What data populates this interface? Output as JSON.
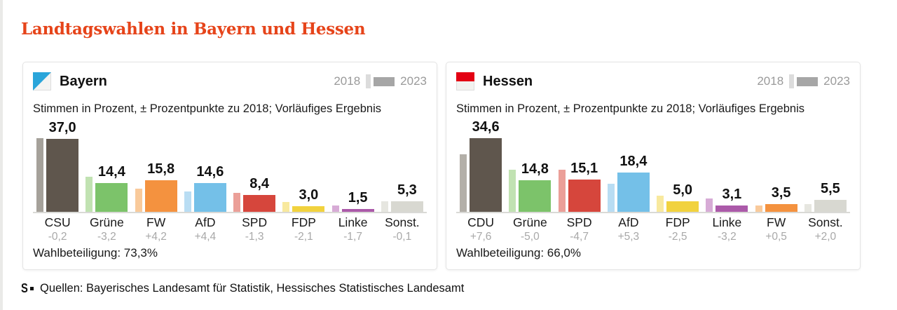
{
  "page": {
    "title": "Landtagswahlen in Bayern und Hessen",
    "accent_color": "#e6441a",
    "footer": {
      "logo_text": "S",
      "source_text": "Quellen: Bayerisches Landesamt für Statistik, Hessisches Statistisches Landesamt"
    }
  },
  "chart_data": [
    {
      "type": "bar",
      "title": "Bayern",
      "flag_icon": "bayern-flag",
      "flag_colors": [
        "#2aa5da",
        "#f4f4f2"
      ],
      "subtitle": "Stimmen in Prozent, ± Prozentpunkte zu 2018; Vorläufiges Ergebnis",
      "legend": {
        "prev_label": "2018",
        "curr_label": "2023",
        "prev_swatch_color": "#dcdcdc",
        "curr_swatch_color": "#a6a6a6",
        "position": "top-right"
      },
      "categories": [
        "CSU",
        "Grüne",
        "FW",
        "AfD",
        "SPD",
        "FDP",
        "Linke",
        "Sonst."
      ],
      "series": [
        {
          "name": "2018",
          "values": [
            37.2,
            17.6,
            11.6,
            10.2,
            9.7,
            5.1,
            3.2,
            5.4
          ]
        },
        {
          "name": "2023",
          "values": [
            37.0,
            14.4,
            15.8,
            14.6,
            8.4,
            3.0,
            1.5,
            5.3
          ]
        }
      ],
      "value_labels": [
        "37,0",
        "14,4",
        "15,8",
        "14,6",
        "8,4",
        "3,0",
        "1,5",
        "5,3"
      ],
      "delta_labels": [
        "-0,2",
        "-3,2",
        "+4,2",
        "+4,4",
        "-1,3",
        "-2,1",
        "-1,7",
        "-0,1"
      ],
      "bar_colors": [
        "#5f564d",
        "#7cc36a",
        "#f4923f",
        "#74c0e8",
        "#d6463c",
        "#f1d23e",
        "#ab5aa9",
        "#d8d8d1"
      ],
      "bar_colors_prev": [
        "#a5a19a",
        "#c1e2b2",
        "#f9ca9b",
        "#b9ddf3",
        "#eb9f98",
        "#f8e99e",
        "#d7abd6",
        "#e6e6e0"
      ],
      "turnout": "Wahlbeteiligung: 73,3%"
    },
    {
      "type": "bar",
      "title": "Hessen",
      "flag_icon": "hessen-flag",
      "flag_colors": [
        "#e30013",
        "#f2f2ef"
      ],
      "subtitle": "Stimmen in Prozent, ± Prozentpunkte zu 2018; Vorläufiges Ergebnis",
      "legend": {
        "prev_label": "2018",
        "curr_label": "2023",
        "prev_swatch_color": "#dcdcdc",
        "curr_swatch_color": "#a6a6a6",
        "position": "top-right"
      },
      "categories": [
        "CDU",
        "Grüne",
        "SPD",
        "AfD",
        "FDP",
        "Linke",
        "FW",
        "Sonst."
      ],
      "series": [
        {
          "name": "2018",
          "values": [
            27.0,
            19.8,
            19.8,
            13.1,
            7.5,
            6.3,
            3.0,
            3.5
          ]
        },
        {
          "name": "2023",
          "values": [
            34.6,
            14.8,
            15.1,
            18.4,
            5.0,
            3.1,
            3.5,
            5.5
          ]
        }
      ],
      "value_labels": [
        "34,6",
        "14,8",
        "15,1",
        "18,4",
        "5,0",
        "3,1",
        "3,5",
        "5,5"
      ],
      "delta_labels": [
        "+7,6",
        "-5,0",
        "-4,7",
        "+5,3",
        "-2,5",
        "-3,2",
        "+0,5",
        "+2,0"
      ],
      "bar_colors": [
        "#5f564d",
        "#7cc36a",
        "#d6463c",
        "#74c0e8",
        "#f1d23e",
        "#ab5aa9",
        "#f4923f",
        "#d8d8d1"
      ],
      "bar_colors_prev": [
        "#b3afa8",
        "#c1e2b2",
        "#eb9f98",
        "#b9ddf3",
        "#f8e99e",
        "#d7abd6",
        "#f9ca9b",
        "#e6e6e0"
      ],
      "turnout": "Wahlbeteiligung: 66,0%"
    }
  ]
}
